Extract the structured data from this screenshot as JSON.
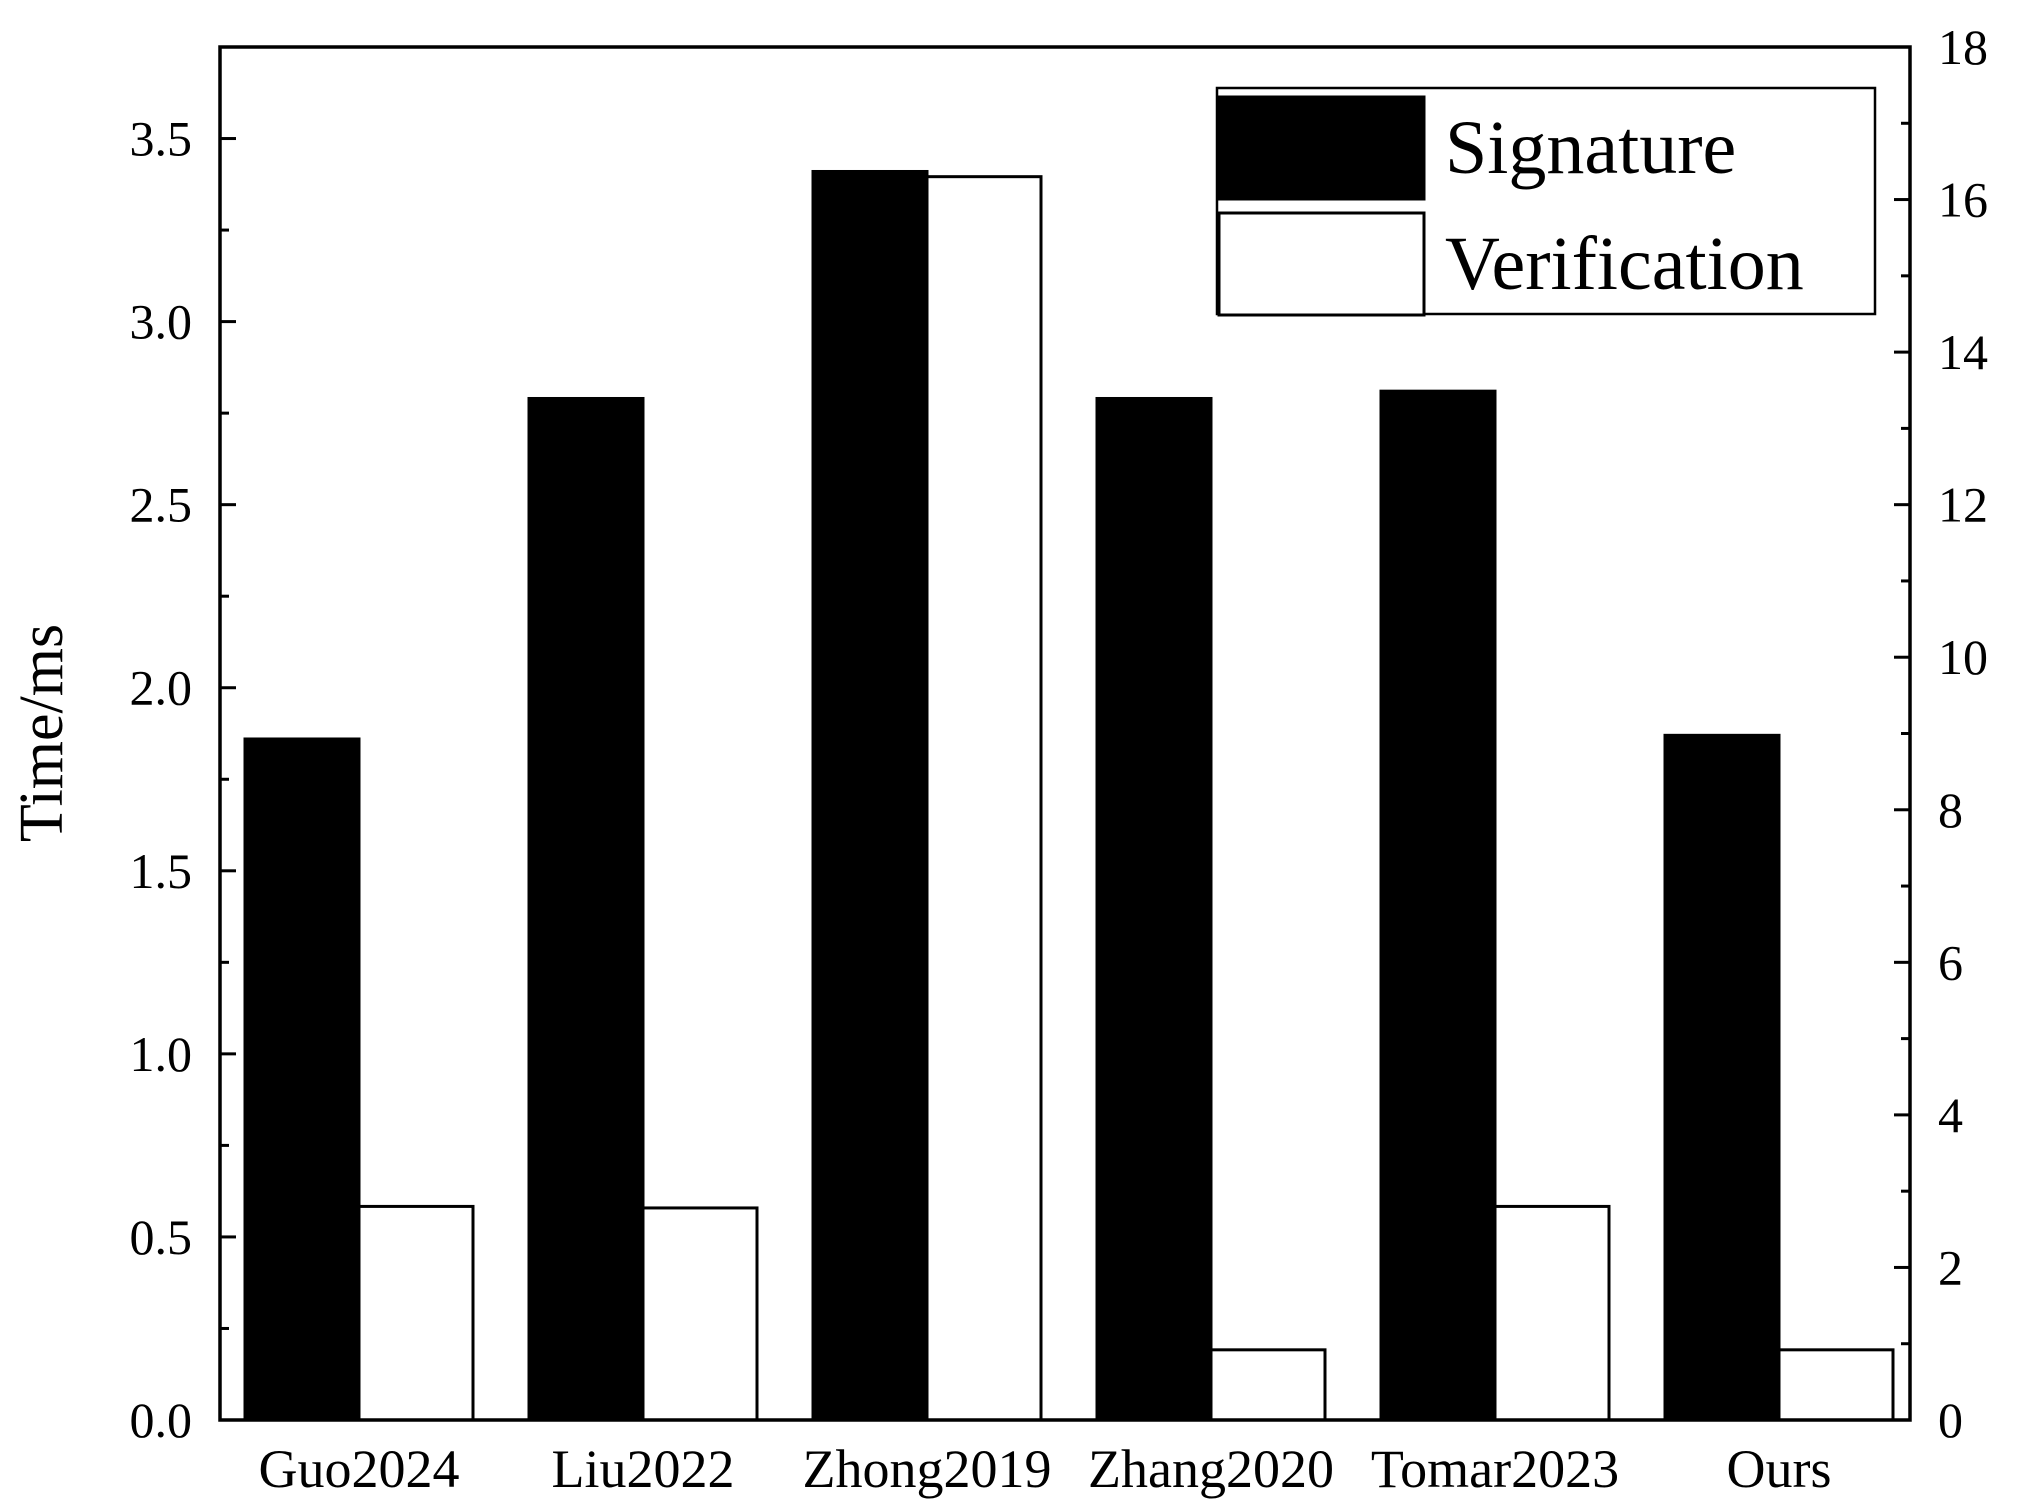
{
  "chart_data": {
    "type": "bar",
    "categories": [
      "Guo2024",
      "Liu2022",
      "Zhong2019",
      "Zhang2020",
      "Tomar2023",
      "Ours"
    ],
    "series": [
      {
        "name": "Signature",
        "axis": "left",
        "color": "#000000",
        "values": [
          1.86,
          2.79,
          3.41,
          2.79,
          2.81,
          1.87
        ]
      },
      {
        "name": "Verification",
        "axis": "right",
        "color": "#ffffff",
        "values": [
          2.8,
          2.78,
          16.3,
          0.92,
          2.8,
          0.92
        ]
      }
    ],
    "ylabel": "Time/ms",
    "y_left": {
      "min": 0,
      "max": 3.75,
      "major_ticks": [
        "0.0",
        "0.5",
        "1.0",
        "1.5",
        "2.0",
        "2.5",
        "3.0",
        "3.5"
      ]
    },
    "y_right": {
      "min": 0,
      "max": 18,
      "major_ticks": [
        "0",
        "2",
        "4",
        "6",
        "8",
        "10",
        "12",
        "14",
        "16",
        "18"
      ]
    },
    "legend_position": "top-right",
    "grid": false
  }
}
